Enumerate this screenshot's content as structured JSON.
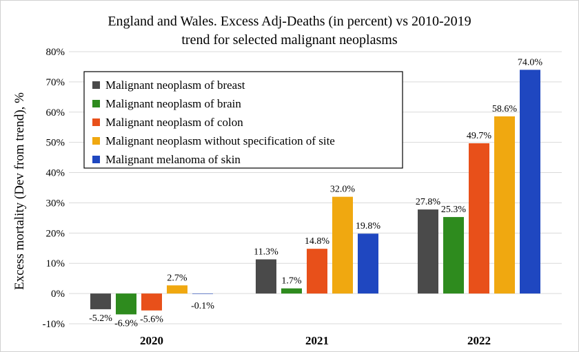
{
  "chart_data": {
    "type": "bar",
    "title_lines": [
      "England and Wales. Excess Adj-Deaths (in percent) vs 2010-2019",
      "trend for selected malignant neoplasms"
    ],
    "ylabel": "Excess mortality (Dev from trend), %",
    "xlabel": "",
    "categories": [
      "2020",
      "2021",
      "2022"
    ],
    "ylim": [
      -10,
      80
    ],
    "yticks": [
      "-10%",
      "0%",
      "10%",
      "20%",
      "30%",
      "40%",
      "50%",
      "60%",
      "70%",
      "80%"
    ],
    "grid": true,
    "legend_position": "top-left",
    "series": [
      {
        "name": "Malignant neoplasm of breast",
        "color": "#4a4a4a",
        "values": [
          -5.2,
          11.3,
          27.8
        ],
        "labels": [
          "-5.2%",
          "11.3%",
          "27.8%"
        ]
      },
      {
        "name": "Malignant neoplasm of brain",
        "color": "#2e8b1e",
        "values": [
          -6.9,
          1.7,
          25.3
        ],
        "labels": [
          "-6.9%",
          "1.7%",
          "25.3%"
        ]
      },
      {
        "name": "Malignant neoplasm of colon",
        "color": "#e8501a",
        "values": [
          -5.6,
          14.8,
          49.7
        ],
        "labels": [
          "-5.6%",
          "14.8%",
          "49.7%"
        ]
      },
      {
        "name": "Malignant neoplasm without specification of site",
        "color": "#f0a810",
        "values": [
          2.7,
          32.0,
          58.6
        ],
        "labels": [
          "2.7%",
          "32.0%",
          "58.6%"
        ]
      },
      {
        "name": "Malignant melanoma of skin",
        "color": "#1f47c0",
        "values": [
          -0.1,
          19.8,
          74.0
        ],
        "labels": [
          "-0.1%",
          "19.8%",
          "74.0%"
        ]
      }
    ]
  }
}
